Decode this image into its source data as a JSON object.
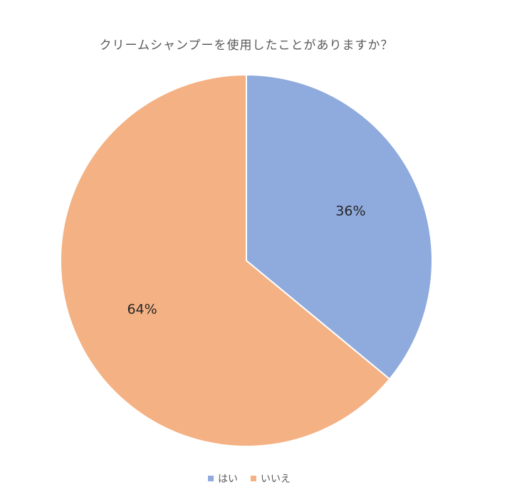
{
  "chart_data": {
    "type": "pie",
    "title": "クリームシャンプーを使用したことがありますか？",
    "categories": [
      "はい",
      "いいえ"
    ],
    "values": [
      36,
      64
    ],
    "data_labels": [
      "36%",
      "64%"
    ],
    "colors": [
      "#8faadc",
      "#f4b183"
    ],
    "legend_position": "bottom"
  }
}
